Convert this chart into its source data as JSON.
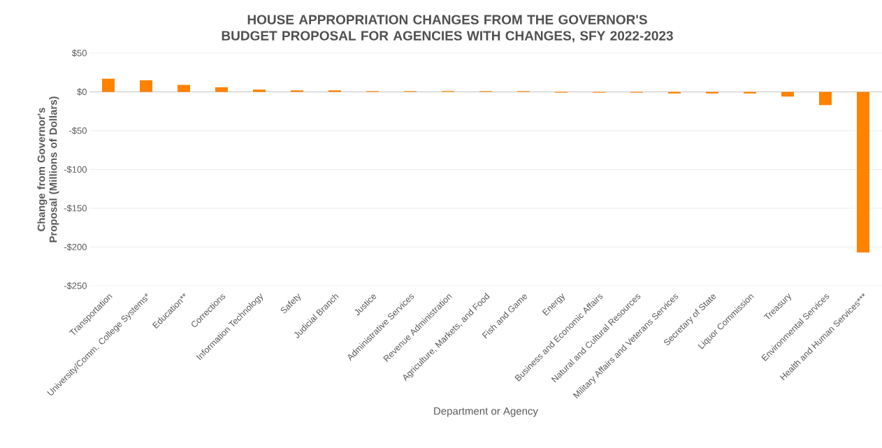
{
  "chart_data": {
    "type": "bar",
    "title": "HOUSE APPROPRIATION CHANGES FROM THE GOVERNOR'S BUDGET PROPOSAL FOR AGENCIES WITH CHANGES, SFY 2022-2023",
    "xlabel": "Department or Agency",
    "ylabel": "Change from Governor's Proposal (Millions of Dollars)",
    "categories": [
      "Transportation",
      "University/Comm. College Systems*",
      "Education**",
      "Corrections",
      "Information Technology",
      "Safety",
      "Judicial Branch",
      "Justice",
      "Administrative Services",
      "Revenue Administration",
      "Agriculture, Markets, and Food",
      "Fish and Game",
      "Energy",
      "Business and Economic Affairs",
      "Natural and Cultural Resources",
      "Military Affairs and Veterans Services",
      "Secretary of State",
      "Liquor Commission",
      "Treasury",
      "Environmental Services",
      "Health and Human Services***"
    ],
    "values": [
      17,
      15,
      9,
      6,
      3,
      2,
      2,
      1,
      1,
      1,
      1,
      1,
      -1,
      -1,
      -1,
      -2,
      -2,
      -2,
      -6,
      -17,
      -207
    ],
    "color": "#ff8200",
    "ylim": [
      -250,
      50
    ],
    "yticks": [
      {
        "value": -250,
        "label": "-$250"
      },
      {
        "value": -200,
        "label": "-$200"
      },
      {
        "value": -150,
        "label": "-$150"
      },
      {
        "value": -100,
        "label": "-$100"
      },
      {
        "value": -50,
        "label": "-$50"
      },
      {
        "value": 0,
        "label": "$0"
      },
      {
        "value": 50,
        "label": "$50"
      }
    ],
    "grid": "y"
  }
}
